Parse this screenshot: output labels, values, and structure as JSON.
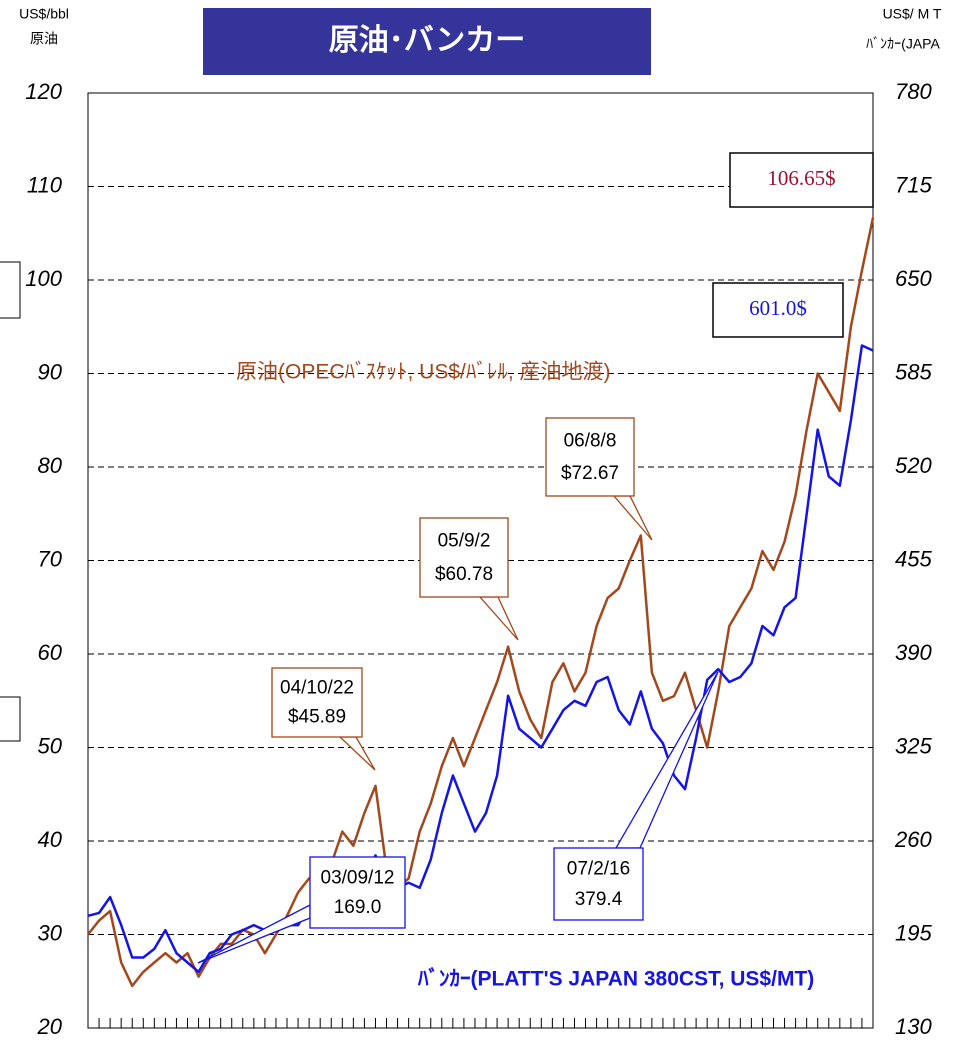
{
  "chart_data": {
    "type": "line",
    "title": "原油･バンカー",
    "ylabel": [
      "US$/bbl",
      "原油"
    ],
    "y2label": [
      "US$/ M T",
      "ﾊﾞﾝｶｰ(JAPA"
    ],
    "categories": [
      null,
      null,
      null,
      null,
      null,
      null,
      null,
      null,
      null,
      null,
      null,
      null,
      null,
      null,
      null,
      null,
      null,
      null,
      null,
      null,
      null,
      null,
      null,
      null,
      null,
      null,
      null,
      null,
      null,
      null,
      null,
      null,
      null,
      null,
      null,
      null,
      null,
      null,
      null,
      null,
      null,
      null,
      null,
      null,
      null,
      null,
      null,
      null,
      null,
      null,
      null,
      null,
      null,
      null,
      null,
      null,
      null,
      null,
      null,
      null,
      null,
      null,
      null,
      null,
      null,
      null,
      null,
      null,
      null,
      null,
      null,
      null
    ],
    "series": [
      {
        "name": "原油(OPECﾊﾞｽｹｯﾄ, US$/ﾊﾞﾚﾙ, 産油地渡)",
        "color": "#a3481c",
        "axis": "y",
        "values": [
          30,
          31.5,
          32.5,
          27,
          24.5,
          26,
          27,
          28,
          27,
          28,
          25.5,
          27.5,
          29,
          29,
          30.5,
          30,
          28,
          30,
          32,
          34.5,
          36,
          35.5,
          37.5,
          41,
          39.5,
          43,
          45.89,
          37,
          35,
          36,
          41,
          44,
          48,
          51,
          48,
          51,
          54,
          57,
          60.78,
          56,
          53,
          51,
          57,
          59,
          56,
          58,
          63,
          66,
          67,
          70,
          72.67,
          58,
          55,
          55.5,
          58,
          54,
          50,
          56,
          63,
          65,
          67,
          71,
          69,
          72,
          77,
          84,
          90,
          88,
          86,
          95,
          101,
          106.65
        ],
        "value_labels": [
          null,
          null,
          null,
          null,
          null,
          null,
          null,
          null,
          null,
          null,
          null,
          null,
          null,
          null,
          null,
          null,
          null,
          null,
          null,
          null,
          null,
          null,
          null,
          null,
          null,
          null,
          null,
          null,
          null,
          null,
          null,
          null,
          null,
          null,
          null,
          null,
          null,
          null,
          null,
          null,
          null,
          null,
          null,
          null,
          null,
          null,
          null,
          null,
          null,
          null,
          null,
          null,
          null,
          null,
          null,
          null,
          null,
          null,
          null,
          null,
          null,
          null,
          null,
          null,
          null,
          null,
          null,
          null,
          null,
          null,
          null,
          "106.65$"
        ]
      },
      {
        "name": "ﾊﾞﾝｶｰ(PLATT'S JAPAN 380CST, US$/MT)",
        "color": "#1414e6",
        "axis": "y2",
        "values": [
          208,
          210,
          221,
          201.5,
          179,
          179,
          185,
          198,
          182,
          175.5,
          169.0,
          182,
          185,
          195,
          198,
          201.5,
          198,
          198,
          201.5,
          201.5,
          214.5,
          205,
          208,
          221,
          218,
          234,
          250,
          234,
          227.5,
          231,
          227.5,
          247,
          279.5,
          305.5,
          286,
          266.5,
          279.5,
          305.5,
          361,
          338,
          331.5,
          325,
          338,
          351,
          357.5,
          354,
          370.5,
          374,
          351,
          341,
          364,
          338,
          328,
          305.5,
          296,
          331.5,
          372,
          379.4,
          370.5,
          374,
          383.5,
          409.5,
          403,
          422.5,
          429,
          487.5,
          546,
          513.5,
          507,
          552.5,
          604.5,
          601.0
        ],
        "value_labels": [
          null,
          null,
          null,
          null,
          null,
          null,
          null,
          null,
          null,
          null,
          null,
          null,
          null,
          null,
          null,
          null,
          null,
          null,
          null,
          null,
          null,
          null,
          null,
          null,
          null,
          null,
          null,
          null,
          null,
          null,
          null,
          null,
          null,
          null,
          null,
          null,
          null,
          null,
          null,
          null,
          null,
          null,
          null,
          null,
          null,
          null,
          null,
          null,
          null,
          null,
          null,
          null,
          null,
          null,
          null,
          null,
          null,
          null,
          null,
          null,
          null,
          null,
          null,
          null,
          null,
          null,
          null,
          null,
          null,
          null,
          null,
          "601.0$"
        ]
      }
    ],
    "annotations": [
      {
        "lines": [
          "04/10/22",
          "$45.89"
        ]
      },
      {
        "lines": [
          "05/9/2",
          "$60.78"
        ]
      },
      {
        "lines": [
          "06/8/8",
          "$72.67"
        ]
      },
      {
        "lines": [
          "07/2/16",
          "379.4"
        ]
      },
      {
        "lines": [
          "03/09/12",
          "169.0"
        ]
      }
    ],
    "ylim": [
      20,
      120
    ],
    "yticks": [
      20,
      30,
      40,
      50,
      60,
      70,
      80,
      90,
      100,
      110,
      120
    ],
    "y2lim": [
      130,
      780
    ],
    "y2ticks": [
      130,
      195,
      260,
      325,
      390,
      455,
      520,
      585,
      650,
      715,
      780
    ],
    "grid": true
  }
}
